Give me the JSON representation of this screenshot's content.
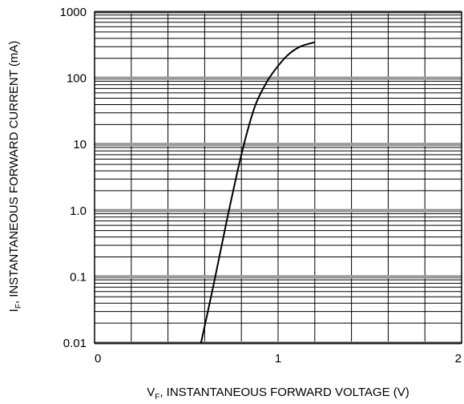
{
  "chart_data": {
    "type": "line",
    "title": "",
    "xlabel": {
      "main": "V",
      "sub": "F",
      "rest": ", INSTANTANEOUS FORWARD VOLTAGE (V)"
    },
    "ylabel": {
      "main": "I",
      "sub": "F",
      "rest": ", INSTANTANEOUS FORWARD CURRENT (mA)"
    },
    "x_scale": "linear",
    "y_scale": "log",
    "xlim": [
      0,
      2
    ],
    "ylim": [
      0.01,
      1000
    ],
    "x_ticks": [
      {
        "value": 0,
        "label": "0"
      },
      {
        "value": 1,
        "label": "1"
      },
      {
        "value": 2,
        "label": "2"
      }
    ],
    "y_ticks": [
      {
        "value": 0.01,
        "label": "0.01"
      },
      {
        "value": 0.1,
        "label": "0.1"
      },
      {
        "value": 1,
        "label": "1.0"
      },
      {
        "value": 10,
        "label": "10"
      },
      {
        "value": 100,
        "label": "100"
      },
      {
        "value": 1000,
        "label": "1000"
      }
    ],
    "grid": true,
    "series": [
      {
        "color": "#000000",
        "x": [
          0.58,
          0.65,
          0.72,
          0.8,
          0.87,
          0.93,
          0.98,
          1.05,
          1.12,
          1.2
        ],
        "y": [
          0.01,
          0.08,
          0.7,
          7,
          35,
          80,
          130,
          220,
          300,
          350
        ]
      }
    ]
  }
}
